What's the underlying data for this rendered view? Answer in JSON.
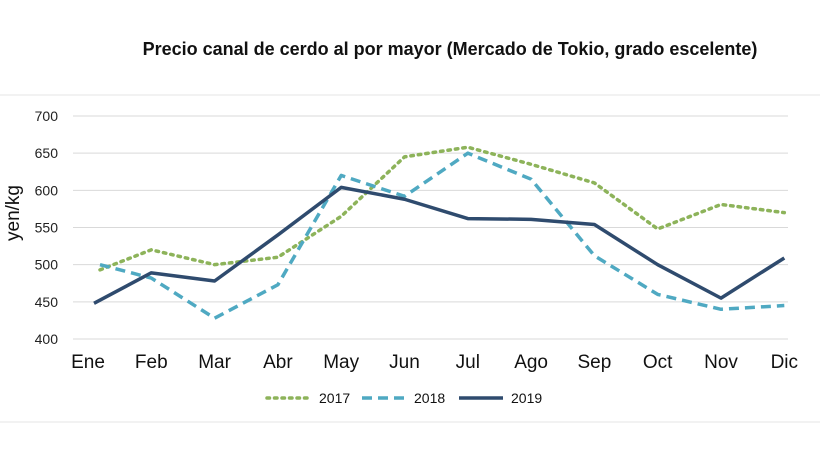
{
  "chart_data": {
    "type": "line",
    "title": "Precio canal de cerdo al por mayor (Mercado de Tokio, grado escelente)",
    "xlabel": "",
    "ylabel": "yen/kg",
    "categories": [
      "Ene",
      "Feb",
      "Mar",
      "Abr",
      "May",
      "Jun",
      "Jul",
      "Ago",
      "Sep",
      "Oct",
      "Nov",
      "Dic"
    ],
    "ylim": [
      400,
      700
    ],
    "yticks": [
      400,
      450,
      500,
      550,
      600,
      650,
      700
    ],
    "grid": "horizontal",
    "legend_position": "bottom",
    "series": [
      {
        "name": "2017",
        "style": "dotted",
        "color": "#8db35a",
        "values": [
          493,
          520,
          500,
          510,
          565,
          645,
          658,
          635,
          610,
          548,
          581,
          570
        ]
      },
      {
        "name": "2018",
        "style": "dashed",
        "color": "#4fa9c2",
        "values": [
          500,
          482,
          428,
          473,
          620,
          592,
          650,
          615,
          512,
          460,
          440,
          445
        ]
      },
      {
        "name": "2019",
        "style": "solid",
        "color": "#2f4b6e",
        "values": [
          448,
          489,
          478,
          540,
          604,
          588,
          562,
          561,
          554,
          500,
          455,
          509
        ]
      }
    ]
  }
}
